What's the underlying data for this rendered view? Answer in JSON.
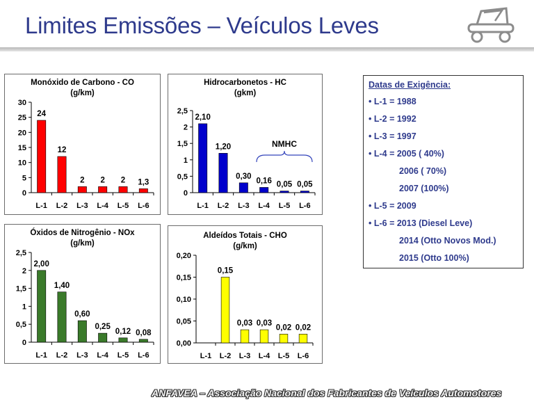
{
  "slide": {
    "title": "Limites Emissões – Veículos Leves",
    "footer": "ANFAVEA – Associação Nacional dos Fabricantes de Veículos Automotores"
  },
  "dates": {
    "header": "Datas de Exigência:",
    "rows": [
      "• L-1 = 1988",
      "• L-2 = 1992",
      "• L-3 = 1997",
      "• L-4 = 2005 (  40%)",
      "2006 (  70%)",
      "2007 (100%)",
      "• L-5 = 2009",
      "• L-6 = 2013 (Diesel Leve)",
      "2014 (Otto Novos Mod.)",
      "2015 (Otto 100%)"
    ]
  },
  "chart_data": [
    {
      "type": "bar",
      "title": "Monóxido de Carbono - CO",
      "subtitle": "(g/km)",
      "categories": [
        "L-1",
        "L-2",
        "L-3",
        "L-4",
        "L-5",
        "L-6"
      ],
      "values": [
        24,
        12,
        2,
        2,
        2,
        1.3
      ],
      "labels": [
        "24",
        "12",
        "2",
        "2",
        "2",
        "1,3"
      ],
      "ylim": [
        0,
        30
      ],
      "yticks": [
        "0",
        "5",
        "10",
        "15",
        "20",
        "25",
        "30"
      ],
      "color": "#ff0000",
      "annotation": ""
    },
    {
      "type": "bar",
      "title": "Hidrocarbonetos - HC",
      "subtitle": "(gkm)",
      "categories": [
        "L-1",
        "L-2",
        "L-3",
        "L-4",
        "L-5",
        "L-6"
      ],
      "values": [
        2.1,
        1.2,
        0.3,
        0.16,
        0.05,
        0.05
      ],
      "labels": [
        "2,10",
        "1,20",
        "0,30",
        "0,16",
        "0,05",
        "0,05"
      ],
      "ylim": [
        0,
        2.5
      ],
      "yticks": [
        "0",
        "0,5",
        "1",
        "1,5",
        "2",
        "2,5"
      ],
      "color": "#0000cc",
      "annotation": "NMHC"
    },
    {
      "type": "bar",
      "title": "Óxidos de Nitrogênio - NOx",
      "subtitle": "(g/km)",
      "categories": [
        "L-1",
        "L-2",
        "L-3",
        "L-4",
        "L-5",
        "L-6"
      ],
      "values": [
        2.0,
        1.4,
        0.6,
        0.25,
        0.12,
        0.08
      ],
      "labels": [
        "2,00",
        "1,40",
        "0,60",
        "0,25",
        "0,12",
        "0,08"
      ],
      "ylim": [
        0,
        2.5
      ],
      "yticks": [
        "0",
        "0,5",
        "1",
        "1,5",
        "2",
        "2,5"
      ],
      "color": "#3a7a2a",
      "annotation": ""
    },
    {
      "type": "bar",
      "title": "Aldeídos Totais - CHO",
      "subtitle": "(g/km)",
      "categories": [
        "L-1",
        "L-2",
        "L-3",
        "L-4",
        "L-5",
        "L-6"
      ],
      "values": [
        null,
        0.15,
        0.03,
        0.03,
        0.02,
        0.02
      ],
      "labels": [
        "",
        "0,15",
        "0,03",
        "0,03",
        "0,02",
        "0,02"
      ],
      "ylim": [
        0,
        0.2
      ],
      "yticks": [
        "0,00",
        "0,05",
        "0,10",
        "0,15",
        "0,20"
      ],
      "color": "#ffff00",
      "annotation": ""
    }
  ]
}
